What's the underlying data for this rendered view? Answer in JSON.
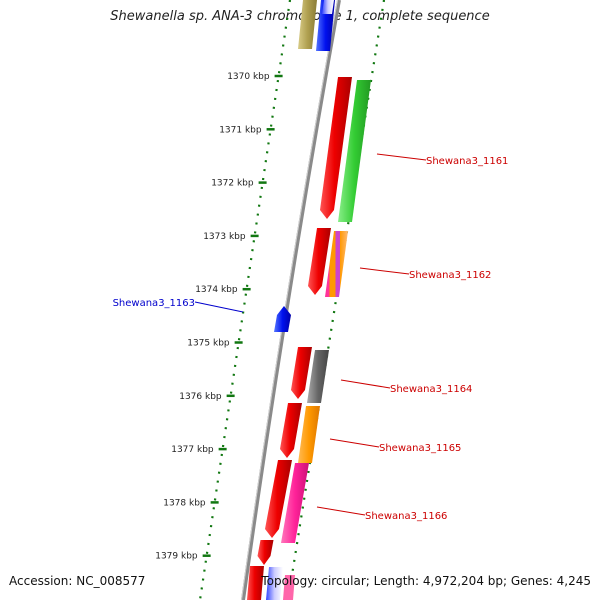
{
  "title": "Shewanella sp. ANA-3 chromosome 1, complete sequence",
  "accession": "Accession: NC_008577",
  "summary": "Topology: circular; Length: 4,972,204 bp; Genes: 4,245",
  "ticks": [
    "1370 kbp",
    "1371 kbp",
    "1372 kbp",
    "1373 kbp",
    "1374 kbp",
    "1375 kbp",
    "1376 kbp",
    "1377 kbp",
    "1378 kbp",
    "1379 kbp"
  ],
  "genes": [
    {
      "label": "Shewana3_1161",
      "color": "#cc0000"
    },
    {
      "label": "Shewana3_1162",
      "color": "#cc0000"
    },
    {
      "label": "Shewana3_1163",
      "color": "#0000cc"
    },
    {
      "label": "Shewana3_1164",
      "color": "#cc0000"
    },
    {
      "label": "Shewana3_1165",
      "color": "#cc0000"
    },
    {
      "label": "Shewana3_1166",
      "color": "#cc0000"
    }
  ],
  "colors": {
    "backbone": "#8a8a8a",
    "tick_dots": "#117711",
    "cds": "#ee0000",
    "gene": "#0000ee"
  }
}
